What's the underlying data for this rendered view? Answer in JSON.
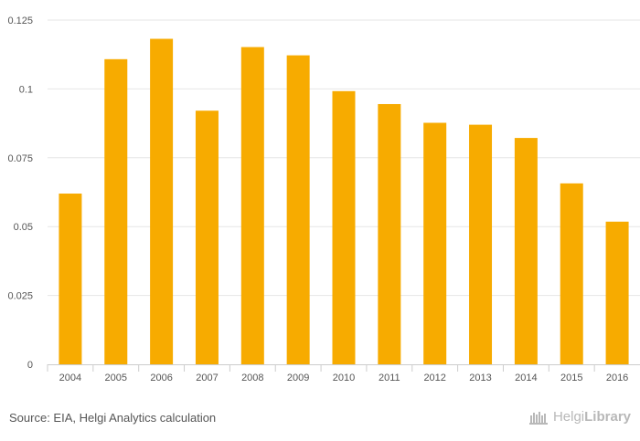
{
  "chart_data": {
    "type": "bar",
    "title": "",
    "xlabel": "",
    "ylabel": "",
    "ylim": [
      0,
      0.125
    ],
    "yticks": [
      {
        "value": 0,
        "label": "0"
      },
      {
        "value": 0.025,
        "label": "0.025"
      },
      {
        "value": 0.05,
        "label": "0.05"
      },
      {
        "value": 0.075,
        "label": "0.075"
      },
      {
        "value": 0.1,
        "label": "0.1"
      },
      {
        "value": 0.125,
        "label": "0.125"
      }
    ],
    "categories": [
      "2004",
      "2005",
      "2006",
      "2007",
      "2008",
      "2009",
      "2010",
      "2011",
      "2012",
      "2013",
      "2014",
      "2015",
      "2016"
    ],
    "values": [
      0.062,
      0.1108,
      0.1182,
      0.0921,
      0.1152,
      0.1122,
      0.0992,
      0.0945,
      0.0877,
      0.087,
      0.0822,
      0.0657,
      0.0518
    ],
    "grid": true,
    "legend": "none"
  },
  "colors": {
    "bar": "#f7ab00",
    "grid": "#e6e6e6",
    "axis": "#cccccc",
    "text": "#555555",
    "brand": "#b8b8b8"
  },
  "footer": {
    "source": "Source: EIA, Helgi Analytics calculation",
    "brand_light": "Helgi",
    "brand_bold": "Library",
    "brand_icon": "helgi-library-logo-icon"
  }
}
